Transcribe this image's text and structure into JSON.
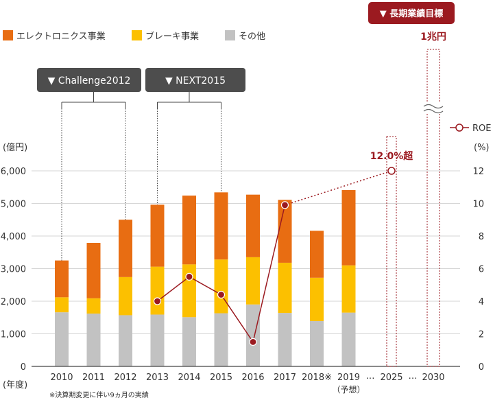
{
  "chart_data": {
    "type": "bar",
    "subtype": "stacked-bar-with-line",
    "categories": [
      "2010",
      "2011",
      "2012",
      "2013",
      "2014",
      "2015",
      "2016",
      "2017",
      "2018※",
      "2019"
    ],
    "category_sublabels": {
      "2019": "（予想）"
    },
    "future_categories": [
      "2025",
      "2030"
    ],
    "ellipsis": "…",
    "series": [
      {
        "name": "その他",
        "values": [
          1660,
          1620,
          1570,
          1590,
          1510,
          1630,
          1900,
          1640,
          1390,
          1650
        ],
        "color": "#c2c2c2"
      },
      {
        "name": "ブレーキ事業",
        "values": [
          460,
          470,
          1170,
          1470,
          1620,
          1650,
          1450,
          1540,
          1330,
          1450
        ],
        "color": "#fcc000"
      },
      {
        "name": "エレクトロニクス事業",
        "values": [
          1130,
          1700,
          1760,
          1900,
          2110,
          2060,
          1920,
          1930,
          1440,
          2310
        ],
        "color": "#e86d12"
      }
    ],
    "line_series": {
      "name": "ROE",
      "points": [
        {
          "category": "2013",
          "value": 4.0
        },
        {
          "category": "2014",
          "value": 5.5
        },
        {
          "category": "2015",
          "value": 4.4
        },
        {
          "category": "2016",
          "value": 1.5
        },
        {
          "category": "2017",
          "value": 9.9
        }
      ],
      "projection": {
        "from": "2017",
        "to": "2025",
        "value": 12.0,
        "label": "12.0%超"
      },
      "color": "#9b1a20"
    },
    "target": {
      "category": "2030",
      "value": 10000,
      "label": "1兆円",
      "header": "▼ 長期業績目標"
    },
    "y_left": {
      "label": "(億円)",
      "ticks": [
        "0",
        "1,000",
        "2,000",
        "3,000",
        "4,000",
        "5,000",
        "6,000"
      ],
      "ylim": [
        0,
        6000
      ]
    },
    "y_right": {
      "label": "(%)",
      "ticks": [
        "0",
        "2",
        "4",
        "6",
        "8",
        "10",
        "12"
      ],
      "ylim": [
        0,
        12
      ]
    },
    "x_label": "(年度)",
    "plans": [
      {
        "label": "▼ Challenge2012",
        "from": "2010",
        "to": "2012"
      },
      {
        "label": "▼ NEXT2015",
        "from": "2013",
        "to": "2015"
      }
    ],
    "legend": {
      "placement": "top-left",
      "line_legend_placement": "top-right"
    },
    "grid": true,
    "footnote": "※決算期変更に伴い9ヵ月の実績"
  }
}
